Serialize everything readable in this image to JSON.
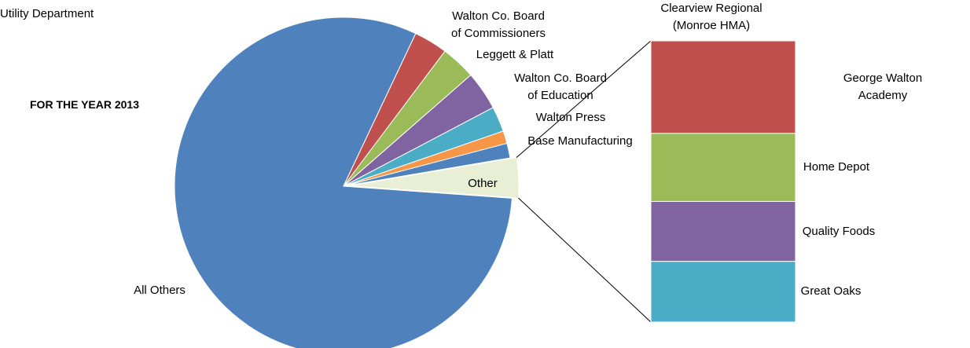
{
  "chart_data": [
    {
      "type": "pie",
      "title": "Utility Department",
      "subtitle": "FOR THE YEAR 2013",
      "categories": [
        "All Others",
        "Other",
        "Clearview Regional\n(Monroe HMA)",
        "Base Manufacturing",
        "Walton Press",
        "Walton Co. Board\nof Education",
        "Leggett & Platt",
        "Walton Co. Board\nof Commissioners"
      ],
      "values": [
        80.4,
        3.8,
        1.4,
        1.2,
        2.4,
        3.7,
        3.3,
        3.2
      ],
      "colors": [
        "#4f81bd",
        "#e8efd4",
        "#4f81bd",
        "#f79646",
        "#4bacc6",
        "#8064a2",
        "#9bbb59",
        "#c0504d"
      ]
    },
    {
      "type": "bar",
      "categories": [
        "George Walton Academy",
        "Home Depot",
        "Quality Foods",
        "Great Oaks"
      ],
      "values": [
        1.25,
        0.92,
        0.81,
        0.82
      ],
      "colors": [
        "#c0504d",
        "#9bbb59",
        "#8064a2",
        "#4bacc6"
      ]
    }
  ]
}
